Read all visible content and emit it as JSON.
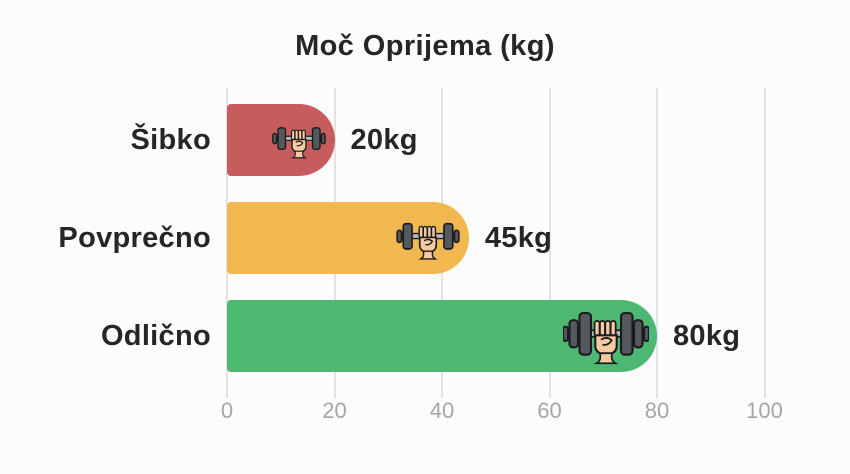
{
  "chart_data": {
    "type": "bar",
    "orientation": "horizontal",
    "title": "Moč Oprijema (kg)",
    "categories": [
      "Šibko",
      "Povprečno",
      "Odlično"
    ],
    "values": [
      20,
      45,
      80
    ],
    "value_labels": [
      "20kg",
      "45kg",
      "80kg"
    ],
    "bar_colors": [
      "#c65c5d",
      "#f0b84e",
      "#4db872"
    ],
    "icon": "dumbbell-fist-icon",
    "icon_sizes": [
      "small",
      "medium",
      "large"
    ],
    "xlabel": "",
    "ylabel": "",
    "xlim": [
      0,
      100
    ],
    "x_ticks": [
      "0",
      "20",
      "40",
      "60",
      "80",
      "100"
    ],
    "grid": true,
    "legend": "none"
  },
  "colors": {
    "background": "#fcfcfc",
    "gridline": "#e3e3e3",
    "tick_label": "#a6a6a6",
    "text": "#262626"
  }
}
